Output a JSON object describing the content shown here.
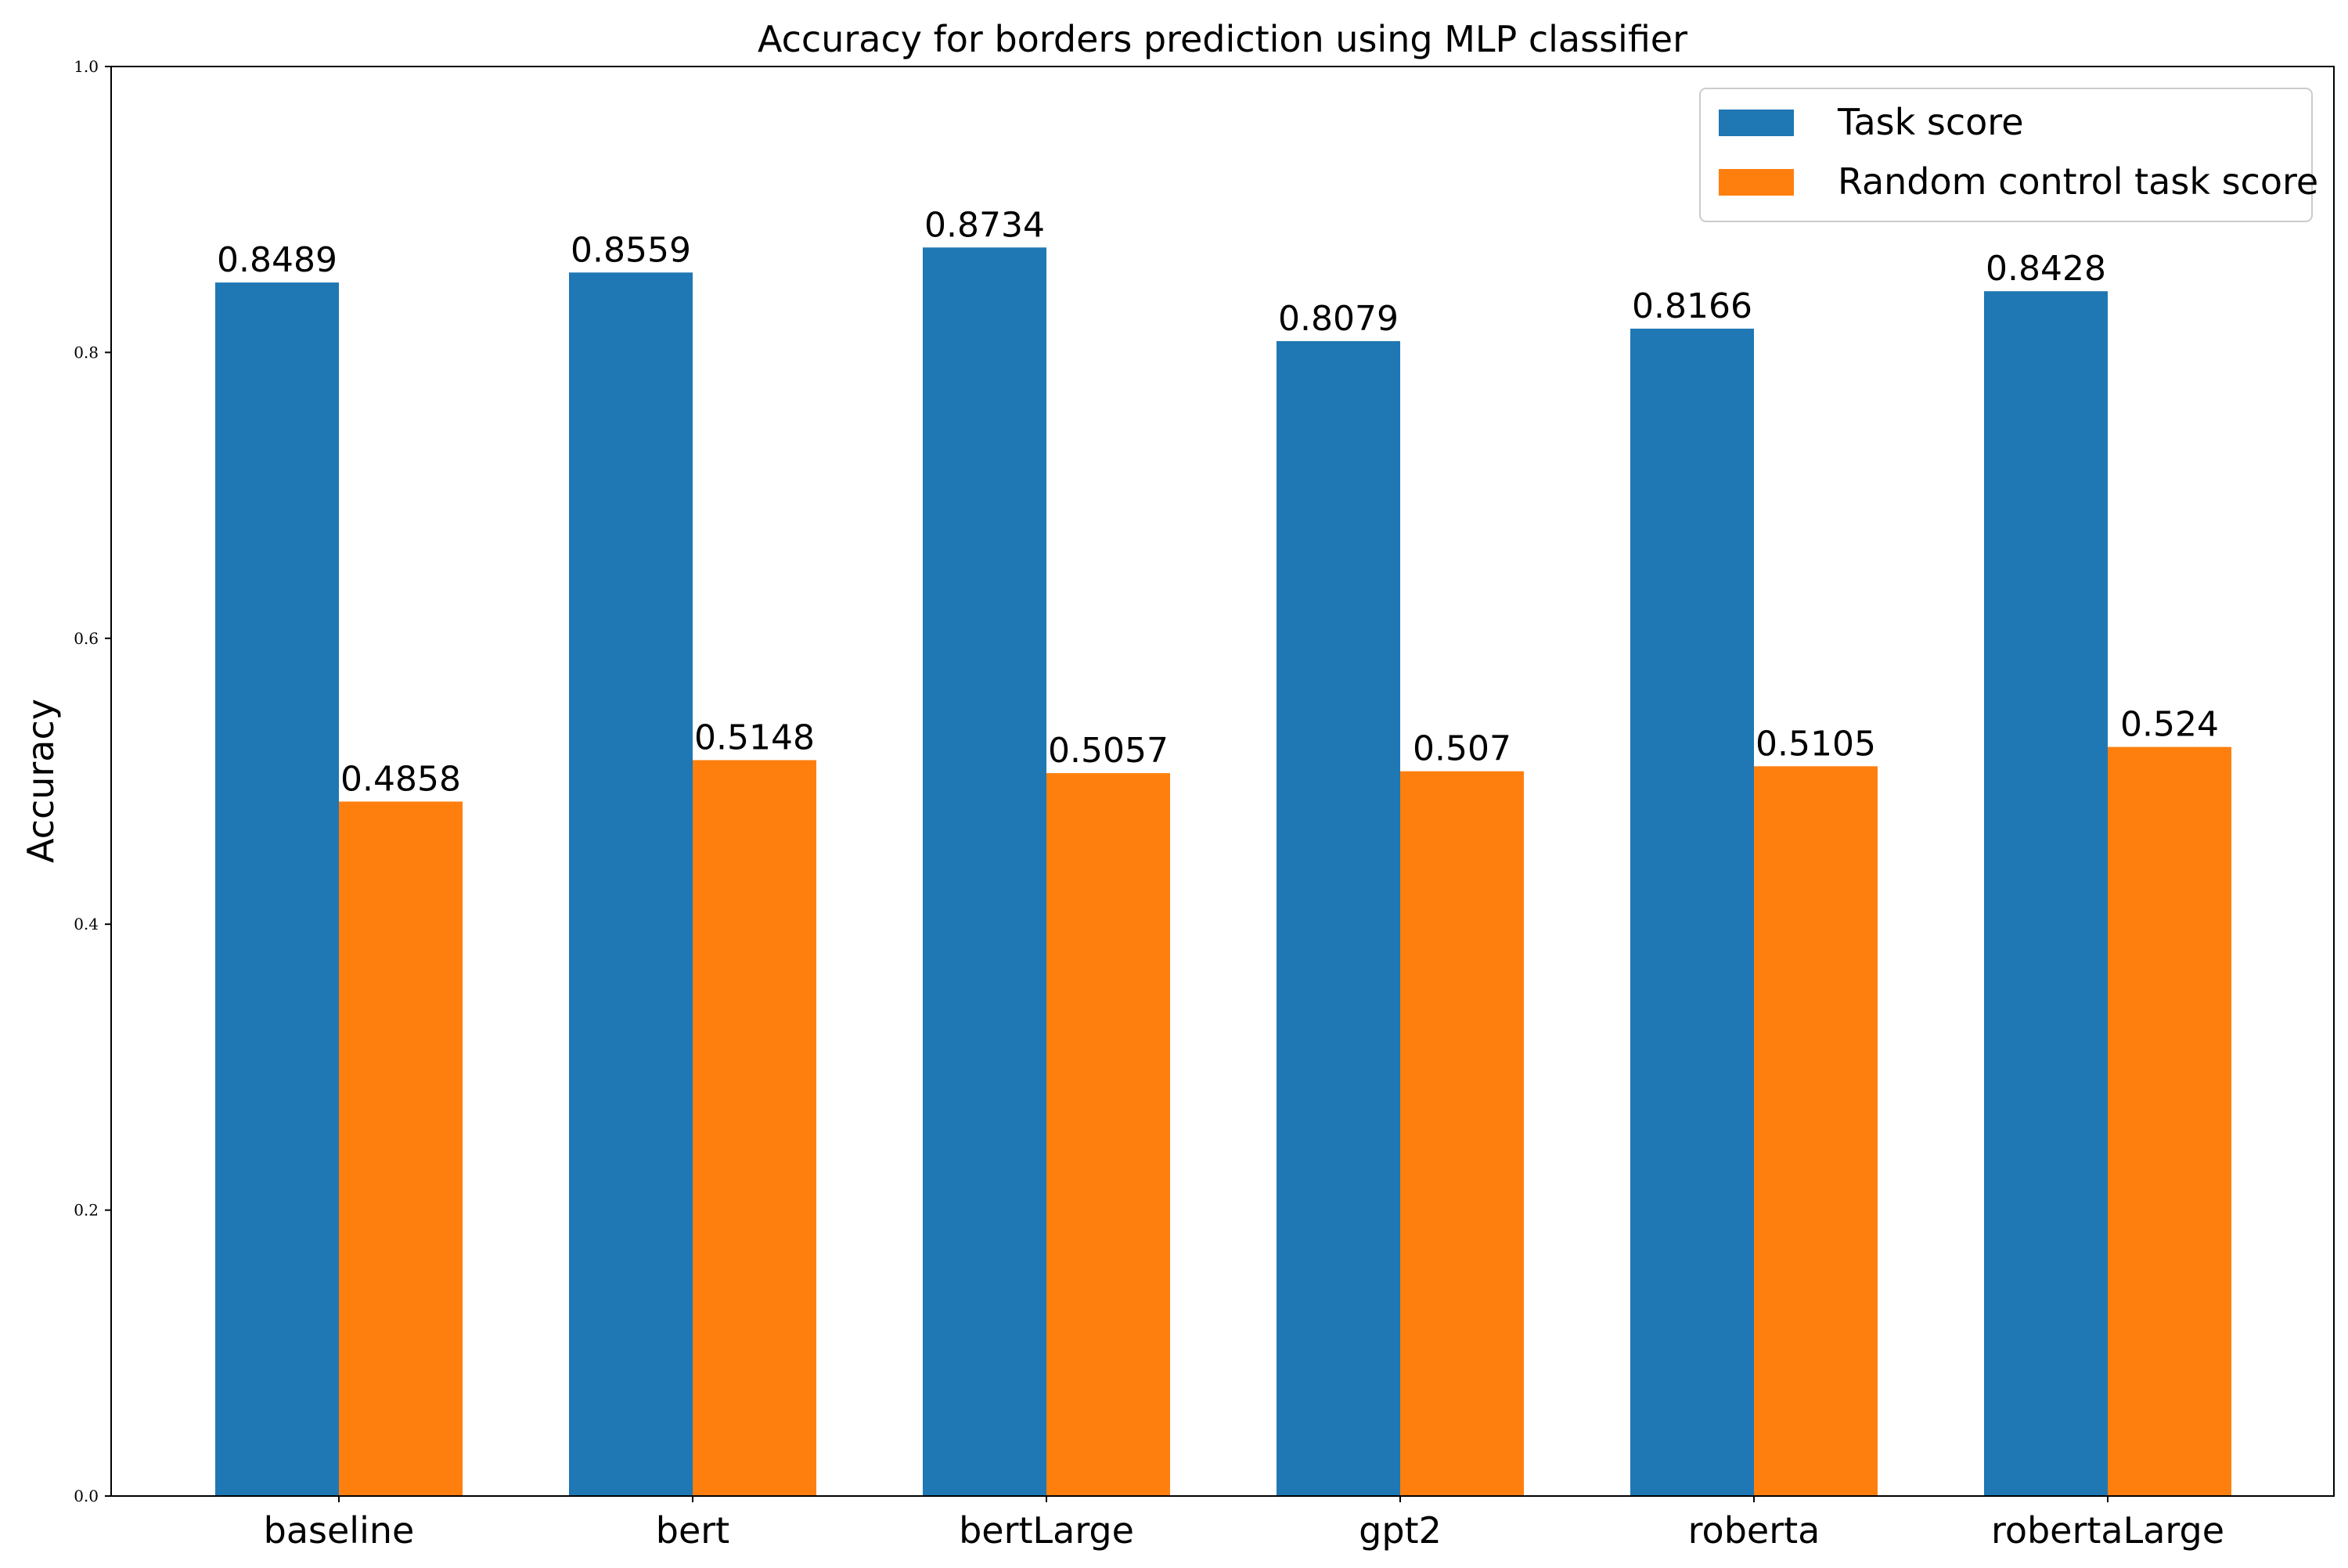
{
  "chart_data": {
    "type": "bar",
    "title": "Accuracy for borders prediction using MLP classifier",
    "xlabel": "",
    "ylabel": "Accuracy",
    "ylim": [
      0,
      1.0
    ],
    "yticks": [
      "0.0",
      "0.2",
      "0.4",
      "0.6",
      "0.8",
      "1.0"
    ],
    "ytick_values": [
      0.0,
      0.2,
      0.4,
      0.6,
      0.8,
      1.0
    ],
    "categories": [
      "baseline",
      "bert",
      "bertLarge",
      "gpt2",
      "roberta",
      "robertaLarge"
    ],
    "series": [
      {
        "name": "Task score",
        "color": "#1f77b4",
        "values": [
          0.8489,
          0.8559,
          0.8734,
          0.8079,
          0.8166,
          0.8428
        ],
        "labels": [
          "0.8489",
          "0.8559",
          "0.8734",
          "0.8079",
          "0.8166",
          "0.8428"
        ]
      },
      {
        "name": "Random control task score",
        "color": "#ff7f0e",
        "values": [
          0.4858,
          0.5148,
          0.5057,
          0.507,
          0.5105,
          0.524
        ],
        "labels": [
          "0.4858",
          "0.5148",
          "0.5057",
          "0.507",
          "0.5105",
          "0.524"
        ]
      }
    ],
    "grid": false,
    "legend_position": "top-right"
  }
}
